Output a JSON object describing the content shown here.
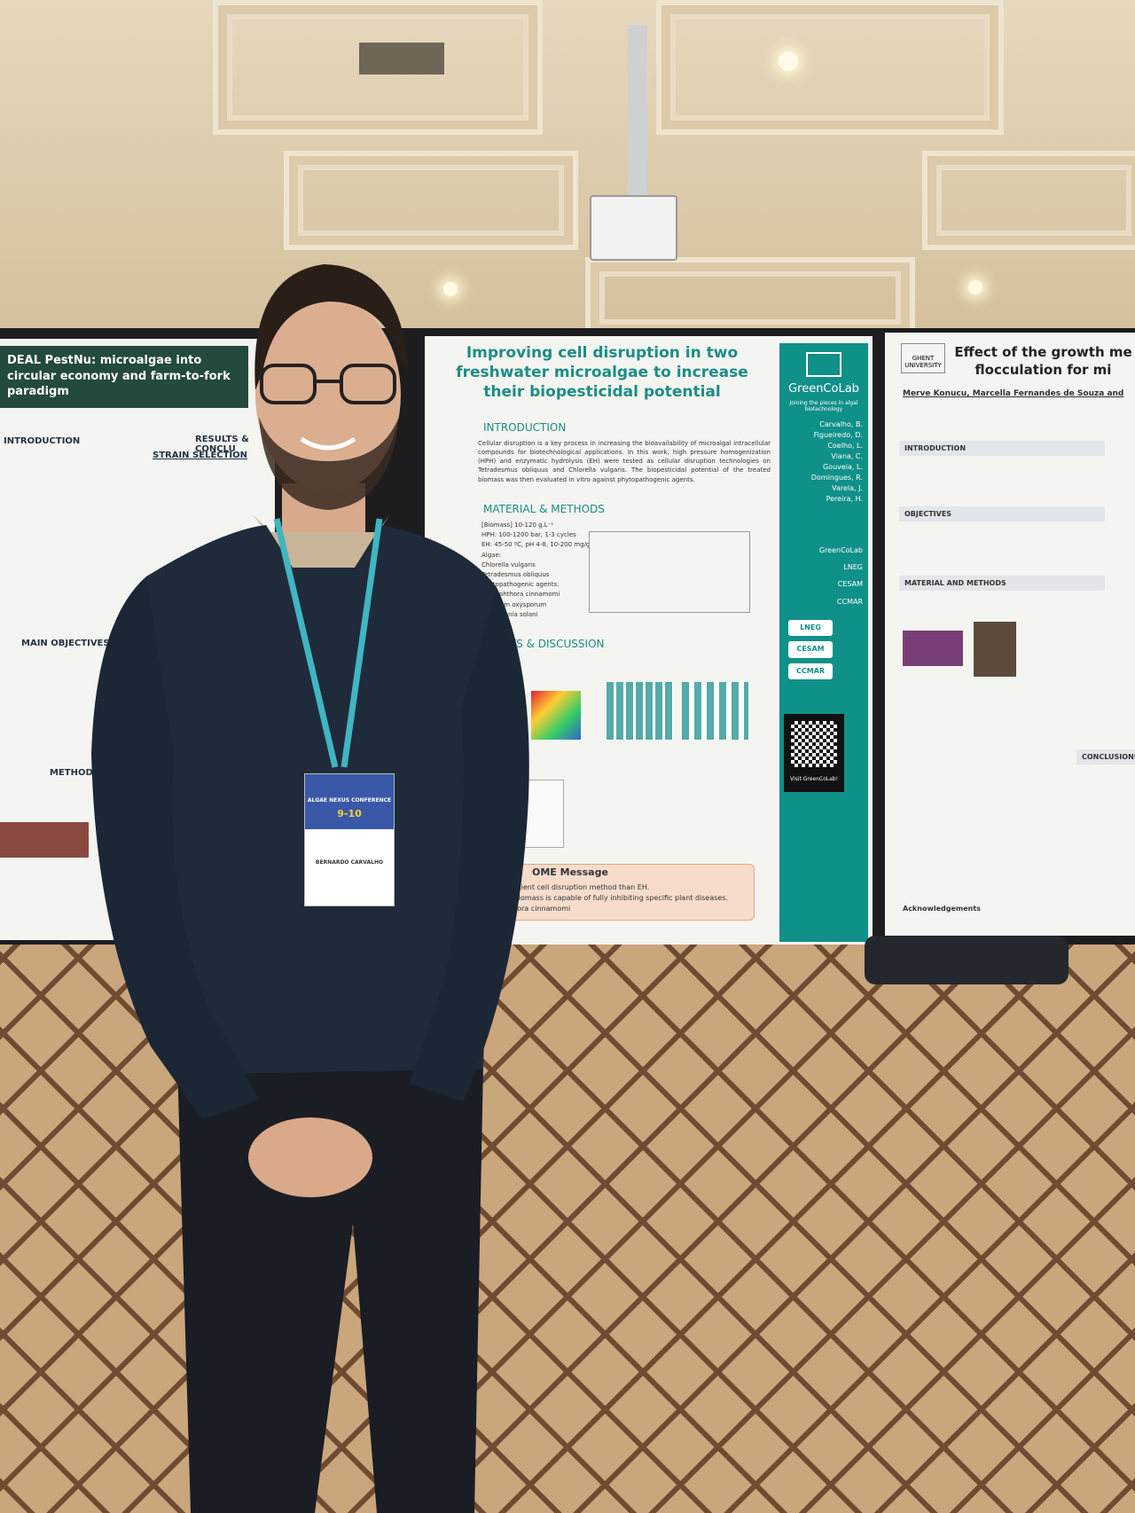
{
  "left_poster": {
    "title": "DEAL PestNu: microalgae into circular economy and farm-to-fork paradigm",
    "sections": [
      "INTRODUCTION",
      "RESULTS & CONCLU",
      "STRAIN SELECTION",
      "MAIN OBJECTIVES",
      "METHODS"
    ]
  },
  "center_poster": {
    "title": "Improving cell disruption in two freshwater microalgae to increase their biopesticidal potential",
    "intro_heading": "INTRODUCTION",
    "intro_text": "Cellular disruption is a key process in increasing the bioavailability of microalgal intracellular compounds for biotechnological applications. In this work, high pressure homogenization (HPH) and enzymatic hydrolysis (EH) were tested as cellular disruption technologies on Tetradesmus obliquus and Chlorella vulgaris. The biopesticidal potential of the treated biomass was then evaluated in vitro against phytopathogenic agents.",
    "methods_heading": "MATERIAL & METHODS",
    "methods_items": [
      "[Biomass] 10-120 g.L⁻¹",
      "HPH: 100-1200 bar, 1-3 cycles",
      "EH: 45-50 ºC, pH 4-8, 10-200 mg/g",
      "Algae:",
      "Chlorella vulgaris",
      "Tetradesmus obliquus",
      "Phytopathogenic agents:",
      "Phytophthora cinnamomi",
      "Fusarium oxysporum",
      "Rhizoctonia solani"
    ],
    "results_heading": "ULTS & DISCUSSION",
    "message_heading": "OME Message",
    "message_lines": [
      "re efficient cell disruption method than EH.",
      "lgae biomass is capable of fully inhibiting specific plant diseases.",
      "ophthora cinnamomi"
    ],
    "logo": "GreenCoLab",
    "tagline": "Joining the pieces in algal biotechnology",
    "authors": [
      "Carvalho, B.",
      "Figueiredo, D.",
      "Coelho, L.",
      "Viana, C.",
      "Gouveia, L.",
      "Domingues, R.",
      "Varela, J.",
      "Pereira, H."
    ],
    "affiliations": [
      "GreenCoLab",
      "LNEG",
      "CESAM",
      "CCMAR"
    ],
    "partner_logos": [
      "LNEG",
      "CESAM",
      "CCMAR"
    ],
    "qr_caption": "Visit GreenCoLab!"
  },
  "right_poster": {
    "institution": "GHENT UNIVERSITY",
    "title_lines": [
      "Effect of the growth me",
      "flocculation for mi"
    ],
    "authors": "Merve Konucu, Marcella Fernandes de Souza and",
    "sections": [
      "INTRODUCTION",
      "OBJECTIVES",
      "MATERIAL AND METHODS",
      "CONCLUSIONS",
      "Acknowledgements"
    ]
  },
  "badge": {
    "conference": "ALGAE NEXUS CONFERENCE",
    "dates": "9-10",
    "name": "BERNARDO CARVALHO"
  }
}
